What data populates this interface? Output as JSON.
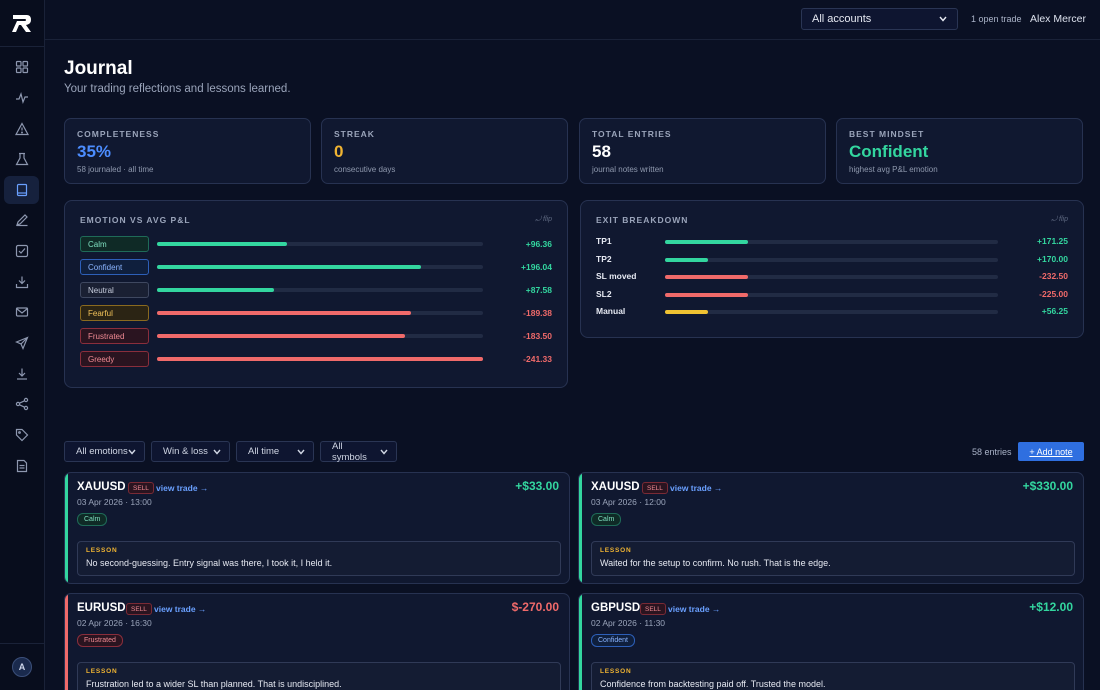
{
  "topbar": {
    "account_select": "All accounts",
    "open_trades": "1 open trade",
    "user": "Alex Mercer"
  },
  "sidebar": {
    "avatar_initial": "A",
    "items": [
      {
        "icon": "dashboard-icon"
      },
      {
        "icon": "activity-icon"
      },
      {
        "icon": "warning-icon"
      },
      {
        "icon": "flask-icon"
      },
      {
        "icon": "journal-icon",
        "active": true
      },
      {
        "icon": "pen-icon"
      },
      {
        "icon": "checklist-icon"
      },
      {
        "icon": "import-icon"
      },
      {
        "icon": "mail-icon"
      },
      {
        "icon": "send-icon"
      },
      {
        "icon": "download-icon"
      },
      {
        "icon": "share-icon"
      },
      {
        "icon": "tag-icon"
      },
      {
        "icon": "report-icon"
      }
    ]
  },
  "page": {
    "title": "Journal",
    "subtitle": "Your trading reflections and lessons learned."
  },
  "stats": [
    {
      "label": "COMPLETENESS",
      "value": "35%",
      "note": "58 journaled · all time",
      "color": "#4c8dff"
    },
    {
      "label": "STREAK",
      "value": "0",
      "note": "consecutive days",
      "color": "#f0b432"
    },
    {
      "label": "TOTAL ENTRIES",
      "value": "58",
      "note": "journal notes written",
      "color": "#ffffff"
    },
    {
      "label": "BEST MINDSET",
      "value": "Confident",
      "note": "highest avg P&L emotion",
      "color": "#33d69f"
    }
  ],
  "emotion_panel": {
    "title": "EMOTION VS AVG P&L",
    "flip": "⤾ flip",
    "rows": [
      {
        "label": "Calm",
        "value": "+96.36",
        "level": 0.4,
        "positive": true
      },
      {
        "label": "Confident",
        "value": "+196.04",
        "level": 0.81,
        "positive": true
      },
      {
        "label": "Neutral",
        "value": "+87.58",
        "level": 0.36,
        "positive": true
      },
      {
        "label": "Fearful",
        "value": "-189.38",
        "level": 0.78,
        "positive": false
      },
      {
        "label": "Frustrated",
        "value": "-183.50",
        "level": 0.76,
        "positive": false
      },
      {
        "label": "Greedy",
        "value": "-241.33",
        "level": 1.0,
        "positive": false
      }
    ]
  },
  "exit_panel": {
    "title": "EXIT BREAKDOWN",
    "flip": "⤾ flip",
    "rows": [
      {
        "label": "TP1",
        "value": "+171.25",
        "level": 0.25,
        "kind": "pos"
      },
      {
        "label": "TP2",
        "value": "+170.00",
        "level": 0.13,
        "kind": "pos"
      },
      {
        "label": "SL moved",
        "value": "-232.50",
        "level": 0.25,
        "kind": "neg"
      },
      {
        "label": "SL2",
        "value": "-225.00",
        "level": 0.25,
        "kind": "neg"
      },
      {
        "label": "Manual",
        "value": "+56.25",
        "level": 0.13,
        "kind": "neutral"
      }
    ]
  },
  "filters": {
    "emotions": "All emotions",
    "outcome": "Win & loss",
    "time": "All time",
    "symbols": "All symbols",
    "entries": "58 entries",
    "add_note": "+ Add note"
  },
  "cards": [
    {
      "symbol": "XAUUSD",
      "side": "SELL",
      "view": "view trade →",
      "pnl": "+$33.00",
      "date": "03 Apr 2026 · 13:00",
      "emotion": "Calm",
      "lesson_label": "LESSON",
      "lesson": "No second-guessing. Entry signal was there, I took it, I held it.",
      "positive": true
    },
    {
      "symbol": "XAUUSD",
      "side": "SELL",
      "view": "view trade →",
      "pnl": "+$330.00",
      "date": "03 Apr 2026 · 12:00",
      "emotion": "Calm",
      "lesson_label": "LESSON",
      "lesson": "Waited for the setup to confirm. No rush. That is the edge.",
      "positive": true
    },
    {
      "symbol": "EURUSD",
      "side": "SELL",
      "view": "view trade →",
      "pnl": "$-270.00",
      "date": "02 Apr 2026 · 16:30",
      "emotion": "Frustrated",
      "lesson_label": "LESSON",
      "lesson": "Frustration led to a wider SL than planned. That is undisciplined.",
      "positive": false
    },
    {
      "symbol": "GBPUSD",
      "side": "SELL",
      "view": "view trade →",
      "pnl": "+$12.00",
      "date": "02 Apr 2026 · 11:30",
      "emotion": "Confident",
      "lesson_label": "LESSON",
      "lesson": "Confidence from backtesting paid off. Trusted the model.",
      "positive": true
    }
  ]
}
